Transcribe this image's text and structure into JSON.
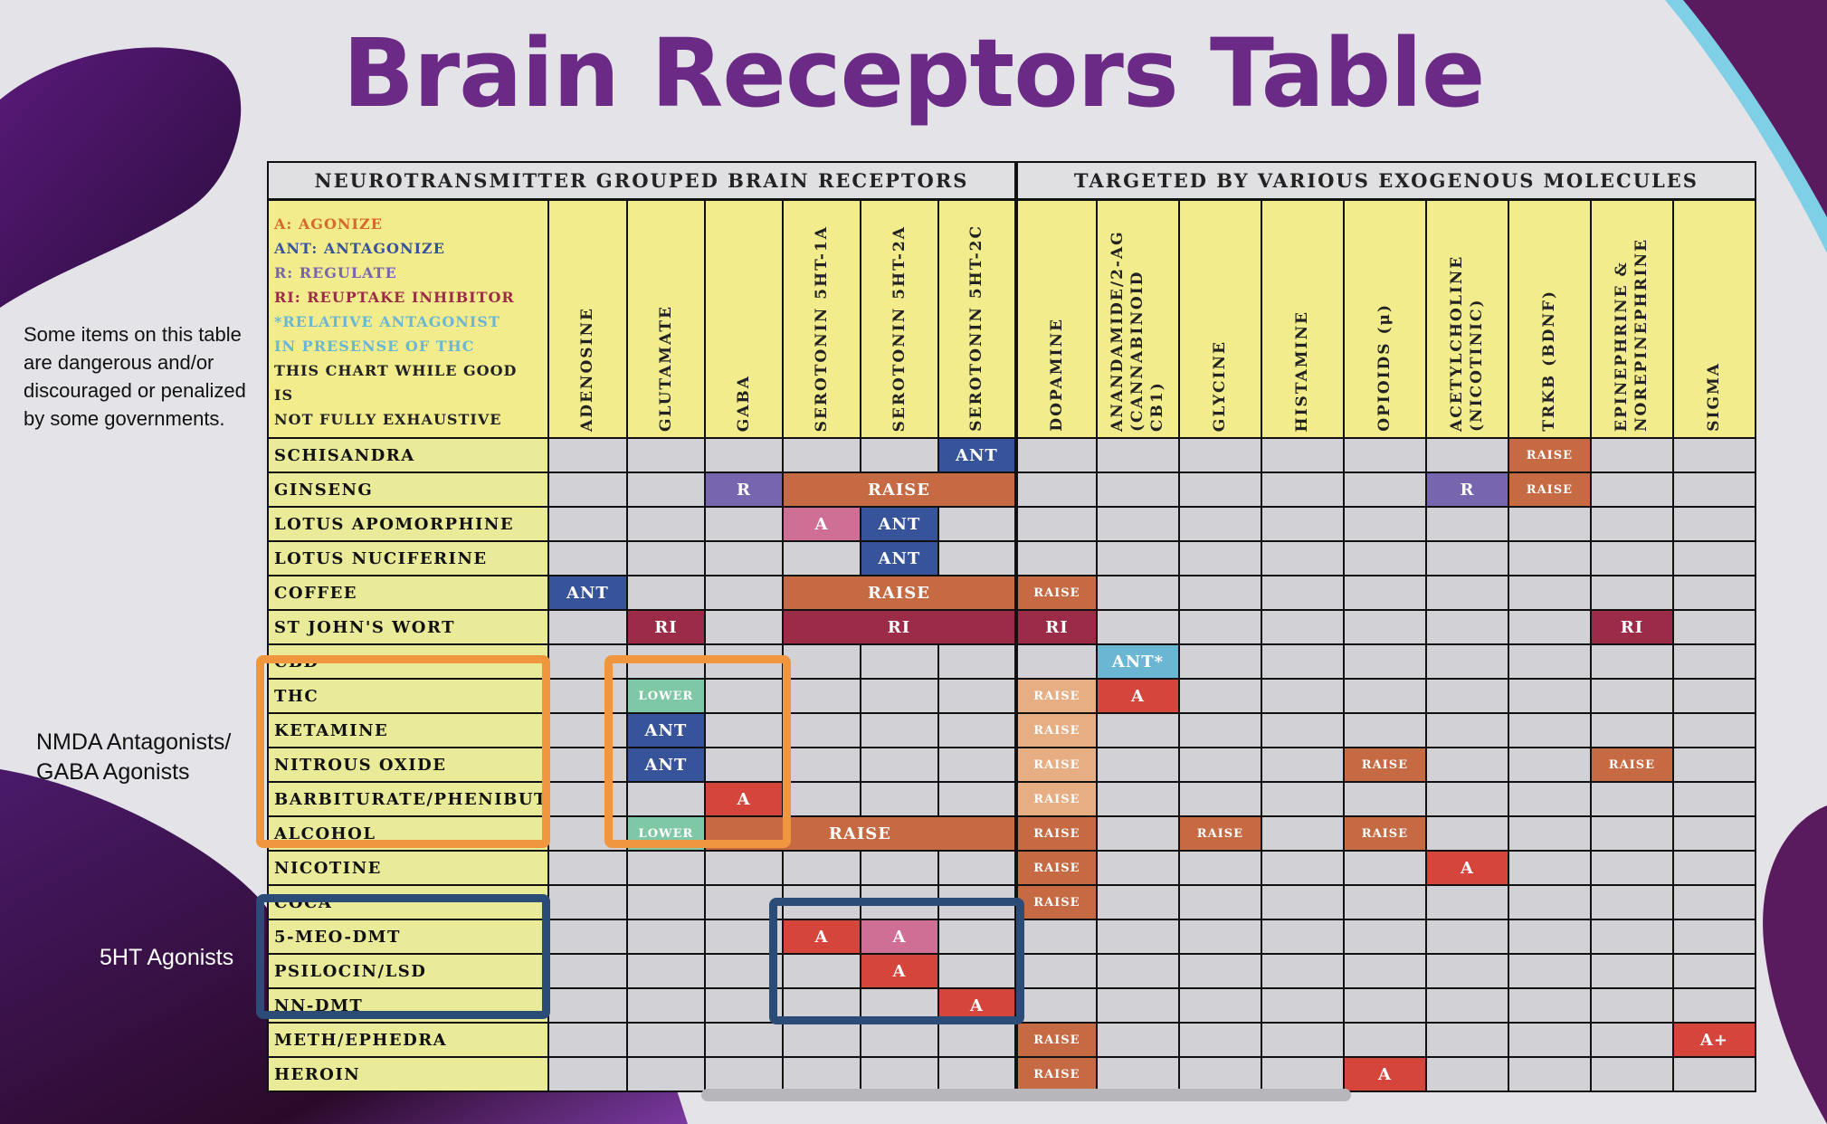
{
  "title": "Brain Receptors Table",
  "side_note": "Some items on this table are dangerous and/or discouraged or penalized by some governments.",
  "group_labels": {
    "nmda": "NMDA Antagonists/ GABA Agonists",
    "agonists": "5HT Agonists"
  },
  "table": {
    "header_left": "NEUROTRANSMITTER GROUPED BRAIN RECEPTORS",
    "header_right": "TARGETED BY VARIOUS EXOGENOUS MOLECULES",
    "legend": [
      {
        "text": "A: AGONIZE",
        "color": "#d46a2b"
      },
      {
        "text": "ANT: ANTAGONIZE",
        "color": "#37539a"
      },
      {
        "text": "R: REGULATE",
        "color": "#7865b0"
      },
      {
        "text": "RI: REUPTAKE INHIBITOR",
        "color": "#9c2b48"
      },
      {
        "text": "*RELATIVE ANTAGONIST",
        "color": "#6bb7d3"
      },
      {
        "text": "IN PRESENSE OF THC",
        "color": "#6bb7d3"
      },
      {
        "text": "THIS CHART WHILE GOOD IS",
        "color": "#222222"
      },
      {
        "text": "NOT FULLY EXHAUSTIVE",
        "color": "#222222"
      }
    ],
    "columns": [
      "ADENOSINE",
      "GLUTAMATE",
      "GABA",
      "SEROTONIN 5HT-1A",
      "SEROTONIN 5HT-2A",
      "SEROTONIN 5HT-2C",
      "DOPAMINE",
      "ANANDAMIDE/2-AG (CANNABINOID CB1)",
      "GLYCINE",
      "HISTAMINE",
      "OPIOIDS (μ)",
      "ACETYLCHOLINE (NICOTINIC)",
      "TRKB (BDNF)",
      "EPINEPHRINE & NOREPINEPHRINE",
      "SIGMA"
    ],
    "rows": [
      {
        "label": "SCHISANDRA",
        "cells": [
          {
            "col": 5,
            "text": "ANT",
            "kind": "ant"
          },
          {
            "col": 12,
            "text": "RAISE",
            "kind": "raise",
            "small": true
          }
        ]
      },
      {
        "label": "GINSENG",
        "cells": [
          {
            "col": 2,
            "text": "R",
            "kind": "r"
          },
          {
            "col": 3,
            "span": 3,
            "text": "RAISE",
            "kind": "raise"
          },
          {
            "col": 11,
            "text": "R",
            "kind": "r"
          },
          {
            "col": 12,
            "text": "RAISE",
            "kind": "raise",
            "small": true
          }
        ]
      },
      {
        "label": "LOTUS APOMORPHINE",
        "cells": [
          {
            "col": 3,
            "text": "A",
            "kind": "apink"
          },
          {
            "col": 4,
            "text": "ANT",
            "kind": "ant"
          }
        ]
      },
      {
        "label": "LOTUS NUCIFERINE",
        "cells": [
          {
            "col": 4,
            "text": "ANT",
            "kind": "ant"
          }
        ]
      },
      {
        "label": "COFFEE",
        "cells": [
          {
            "col": 0,
            "text": "ANT",
            "kind": "ant"
          },
          {
            "col": 3,
            "span": 3,
            "text": "RAISE",
            "kind": "raise"
          },
          {
            "col": 6,
            "text": "RAISE",
            "kind": "raise",
            "small": true
          }
        ]
      },
      {
        "label": "ST JOHN'S WORT",
        "cells": [
          {
            "col": 1,
            "text": "RI",
            "kind": "ri"
          },
          {
            "col": 3,
            "span": 3,
            "text": "RI",
            "kind": "ri"
          },
          {
            "col": 6,
            "text": "RI",
            "kind": "ri"
          },
          {
            "col": 13,
            "text": "RI",
            "kind": "ri"
          }
        ]
      },
      {
        "label": "CBD",
        "cells": [
          {
            "col": 7,
            "text": "ANT*",
            "kind": "antc"
          }
        ]
      },
      {
        "label": "THC",
        "cells": [
          {
            "col": 1,
            "text": "LOWER",
            "kind": "lower",
            "small": true
          },
          {
            "col": 6,
            "text": "RAISE",
            "kind": "raisel",
            "small": true
          },
          {
            "col": 7,
            "text": "A",
            "kind": "a"
          }
        ]
      },
      {
        "label": "KETAMINE",
        "cells": [
          {
            "col": 1,
            "text": "ANT",
            "kind": "ant"
          },
          {
            "col": 6,
            "text": "RAISE",
            "kind": "raisel",
            "small": true
          }
        ]
      },
      {
        "label": "NITROUS OXIDE",
        "cells": [
          {
            "col": 1,
            "text": "ANT",
            "kind": "ant"
          },
          {
            "col": 6,
            "text": "RAISE",
            "kind": "raisel",
            "small": true
          },
          {
            "col": 10,
            "text": "RAISE",
            "kind": "raise",
            "small": true
          },
          {
            "col": 13,
            "text": "RAISE",
            "kind": "raise",
            "small": true
          }
        ]
      },
      {
        "label": "BARBITURATE/PHENIBUT",
        "cells": [
          {
            "col": 2,
            "text": "A",
            "kind": "a"
          },
          {
            "col": 6,
            "text": "RAISE",
            "kind": "raisel",
            "small": true
          }
        ]
      },
      {
        "label": "ALCOHOL",
        "cells": [
          {
            "col": 1,
            "text": "LOWER",
            "kind": "lower",
            "small": true
          },
          {
            "col": 2,
            "span": 4,
            "text": "RAISE",
            "kind": "raise"
          },
          {
            "col": 6,
            "text": "RAISE",
            "kind": "raise",
            "small": true
          },
          {
            "col": 8,
            "text": "RAISE",
            "kind": "raise",
            "small": true
          },
          {
            "col": 10,
            "text": "RAISE",
            "kind": "raise",
            "small": true
          }
        ]
      },
      {
        "label": "NICOTINE",
        "cells": [
          {
            "col": 6,
            "text": "RAISE",
            "kind": "raise",
            "small": true
          },
          {
            "col": 11,
            "text": "A",
            "kind": "a"
          }
        ]
      },
      {
        "label": "COCA",
        "cells": [
          {
            "col": 6,
            "text": "RAISE",
            "kind": "raise",
            "small": true
          }
        ]
      },
      {
        "label": "5-MEO-DMT",
        "cells": [
          {
            "col": 3,
            "text": "A",
            "kind": "a"
          },
          {
            "col": 4,
            "text": "A",
            "kind": "apink"
          }
        ]
      },
      {
        "label": "PSILOCIN/LSD",
        "cells": [
          {
            "col": 4,
            "text": "A",
            "kind": "a"
          }
        ]
      },
      {
        "label": "NN-DMT",
        "cells": [
          {
            "col": 5,
            "text": "A",
            "kind": "a"
          }
        ]
      },
      {
        "label": "METH/EPHEDRA",
        "cells": [
          {
            "col": 6,
            "text": "RAISE",
            "kind": "raise",
            "small": true
          },
          {
            "col": 14,
            "text": "A+",
            "kind": "a"
          }
        ]
      },
      {
        "label": "HEROIN",
        "cells": [
          {
            "col": 6,
            "text": "RAISE",
            "kind": "raise",
            "small": true
          },
          {
            "col": 10,
            "text": "A",
            "kind": "a"
          }
        ]
      }
    ]
  }
}
